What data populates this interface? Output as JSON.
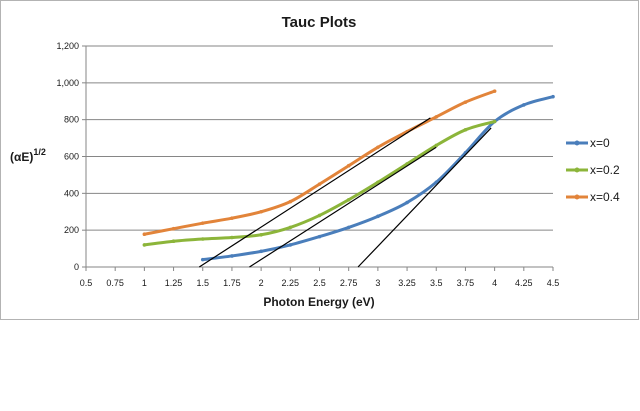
{
  "chart_data": {
    "type": "line",
    "title": "Tauc Plots",
    "xlabel": "Photon Energy (eV)",
    "ylabel_base": "(αE)",
    "ylabel_sup": "1/2",
    "xlim": [
      0.5,
      4.5
    ],
    "ylim": [
      0,
      1200
    ],
    "x_ticks": [
      "0.5",
      "0.75",
      "1",
      "1.25",
      "1.5",
      "1.75",
      "2",
      "2.25",
      "2.5",
      "2.75",
      "3",
      "3.25",
      "3.5",
      "3.75",
      "4",
      "4.25",
      "4.5"
    ],
    "x_tick_values": [
      0.5,
      0.75,
      1,
      1.25,
      1.5,
      1.75,
      2,
      2.25,
      2.5,
      2.75,
      3,
      3.25,
      3.5,
      3.75,
      4,
      4.25,
      4.5
    ],
    "y_ticks": [
      "0",
      "200",
      "400",
      "600",
      "800",
      "1,000",
      "1,200"
    ],
    "y_tick_values": [
      0,
      200,
      400,
      600,
      800,
      1000,
      1200
    ],
    "grid": "horizontal",
    "legend_position": "right",
    "series": [
      {
        "name": "x=0",
        "color": "#4a7ebb",
        "x": [
          1.5,
          1.75,
          2.0,
          2.25,
          2.5,
          2.75,
          3.0,
          3.25,
          3.5,
          3.75,
          4.0,
          4.25,
          4.5
        ],
        "y": [
          40,
          60,
          85,
          120,
          165,
          215,
          275,
          350,
          460,
          620,
          790,
          880,
          925
        ]
      },
      {
        "name": "x=0.2",
        "color": "#8cb53a",
        "x": [
          1.0,
          1.25,
          1.5,
          1.75,
          2.0,
          2.25,
          2.5,
          2.75,
          3.0,
          3.25,
          3.5,
          3.75,
          4.0
        ],
        "y": [
          120,
          140,
          152,
          160,
          175,
          215,
          280,
          365,
          460,
          560,
          660,
          745,
          790
        ]
      },
      {
        "name": "x=0.4",
        "color": "#e2843a",
        "x": [
          1.0,
          1.25,
          1.5,
          1.75,
          2.0,
          2.25,
          2.5,
          2.75,
          3.0,
          3.25,
          3.5,
          3.75,
          4.0
        ],
        "y": [
          178,
          208,
          238,
          265,
          300,
          355,
          450,
          550,
          650,
          735,
          815,
          895,
          955
        ]
      }
    ],
    "tangent_lines": [
      {
        "color": "#000000",
        "x": [
          1.47,
          3.45
        ],
        "y": [
          0,
          810
        ]
      },
      {
        "color": "#000000",
        "x": [
          1.9,
          3.5
        ],
        "y": [
          0,
          650
        ]
      },
      {
        "color": "#000000",
        "x": [
          2.83,
          3.97
        ],
        "y": [
          0,
          755
        ]
      }
    ]
  }
}
